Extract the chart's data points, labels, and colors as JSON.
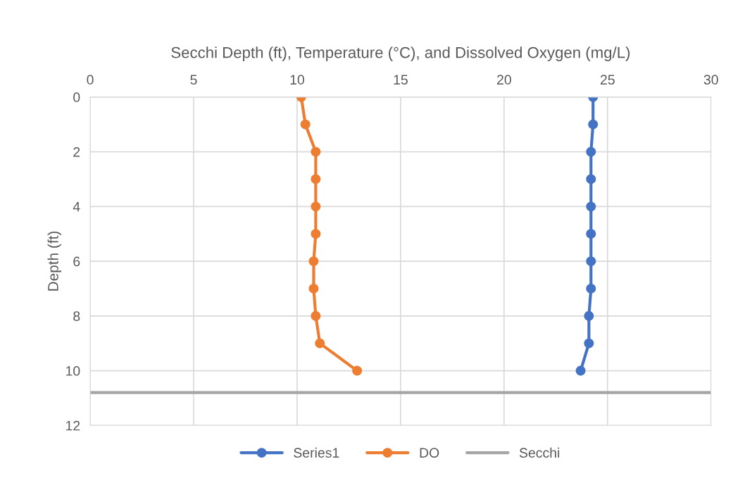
{
  "chart_data": {
    "type": "line",
    "title": "Secchi Depth (ft), Temperature (°C), and Dissolved Oxygen (mg/L)",
    "ylabel": "Depth (ft)",
    "xlim": [
      0,
      30
    ],
    "xticks": [
      0,
      5,
      10,
      15,
      20,
      25,
      30
    ],
    "ylim": [
      12,
      0
    ],
    "yticks": [
      0,
      2,
      4,
      6,
      8,
      10,
      12
    ],
    "grid": true,
    "legend": "bottom",
    "marker": "circle",
    "series": [
      {
        "name": "Series1",
        "color": "#4472c4",
        "x": [
          24.3,
          24.3,
          24.2,
          24.2,
          24.2,
          24.2,
          24.2,
          24.2,
          24.1,
          24.1,
          23.7
        ],
        "values": [
          0,
          1,
          2,
          3,
          4,
          5,
          6,
          7,
          8,
          9,
          10
        ]
      },
      {
        "name": "DO",
        "color": "#ed7d31",
        "x": [
          10.2,
          10.4,
          10.9,
          10.9,
          10.9,
          10.9,
          10.8,
          10.8,
          10.9,
          11.1,
          12.9
        ],
        "values": [
          0,
          1,
          2,
          3,
          4,
          5,
          6,
          7,
          8,
          9,
          10
        ]
      },
      {
        "name": "Secchi",
        "color": "#a5a5a5",
        "marker": "none",
        "x": [
          0,
          30
        ],
        "values": [
          10.8,
          10.8
        ]
      }
    ]
  }
}
